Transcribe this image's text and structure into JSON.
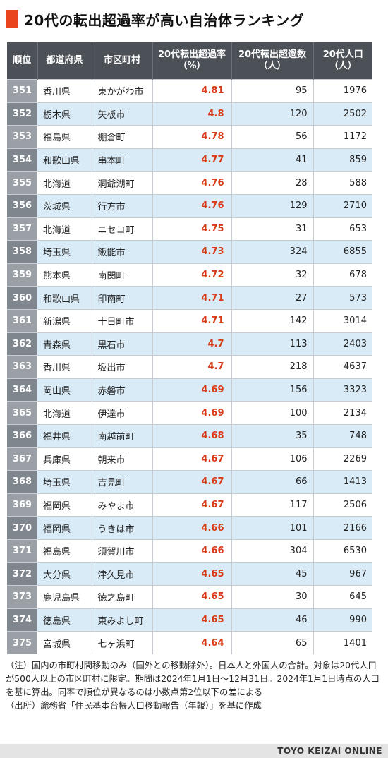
{
  "title": "20代の転出超過率が高い自治体ランキング",
  "colors": {
    "accent": "#e8451e",
    "header_bg": "#4b5157",
    "row_alt": "#d9ebf7",
    "rate_text": "#d83a17"
  },
  "headers": [
    "順位",
    "都道府県",
    "市区町村",
    "20代転出超過率\n（%）",
    "20代転出超過数\n（人）",
    "20代人口\n（人）"
  ],
  "rows": [
    [
      "351",
      "香川県",
      "東かがわ市",
      "4.81",
      "95",
      "1976"
    ],
    [
      "352",
      "栃木県",
      "矢板市",
      "4.8",
      "120",
      "2502"
    ],
    [
      "353",
      "福島県",
      "棚倉町",
      "4.78",
      "56",
      "1172"
    ],
    [
      "354",
      "和歌山県",
      "串本町",
      "4.77",
      "41",
      "859"
    ],
    [
      "355",
      "北海道",
      "洞爺湖町",
      "4.76",
      "28",
      "588"
    ],
    [
      "356",
      "茨城県",
      "行方市",
      "4.76",
      "129",
      "2710"
    ],
    [
      "357",
      "北海道",
      "ニセコ町",
      "4.75",
      "31",
      "653"
    ],
    [
      "358",
      "埼玉県",
      "飯能市",
      "4.73",
      "324",
      "6855"
    ],
    [
      "359",
      "熊本県",
      "南関町",
      "4.72",
      "32",
      "678"
    ],
    [
      "360",
      "和歌山県",
      "印南町",
      "4.71",
      "27",
      "573"
    ],
    [
      "361",
      "新潟県",
      "十日町市",
      "4.71",
      "142",
      "3014"
    ],
    [
      "362",
      "青森県",
      "黒石市",
      "4.7",
      "113",
      "2403"
    ],
    [
      "363",
      "香川県",
      "坂出市",
      "4.7",
      "218",
      "4637"
    ],
    [
      "364",
      "岡山県",
      "赤磐市",
      "4.69",
      "156",
      "3323"
    ],
    [
      "365",
      "北海道",
      "伊達市",
      "4.69",
      "100",
      "2134"
    ],
    [
      "366",
      "福井県",
      "南越前町",
      "4.68",
      "35",
      "748"
    ],
    [
      "367",
      "兵庫県",
      "朝来市",
      "4.67",
      "106",
      "2269"
    ],
    [
      "368",
      "埼玉県",
      "吉見町",
      "4.67",
      "66",
      "1413"
    ],
    [
      "369",
      "福岡県",
      "みやま市",
      "4.67",
      "117",
      "2506"
    ],
    [
      "370",
      "福岡県",
      "うきは市",
      "4.66",
      "101",
      "2166"
    ],
    [
      "371",
      "福島県",
      "須賀川市",
      "4.66",
      "304",
      "6530"
    ],
    [
      "372",
      "大分県",
      "津久見市",
      "4.65",
      "45",
      "967"
    ],
    [
      "373",
      "鹿児島県",
      "徳之島町",
      "4.65",
      "30",
      "645"
    ],
    [
      "374",
      "徳島県",
      "東みよし町",
      "4.65",
      "46",
      "990"
    ],
    [
      "375",
      "宮城県",
      "七ヶ浜町",
      "4.64",
      "65",
      "1401"
    ]
  ],
  "notes": {
    "note": "（注）国内の市町村間移動のみ（国外との移動除外）。日本人と外国人の合計。対象は20代人口が500人以上の市区町村に限定。期間は2024年1月1日～12月31日。2024年1月1日時点の人口を基に算出。同率で順位が異なるのは小数点第2位以下の差による",
    "source": "（出所）総務省「住民基本台帳人口移動報告（年報）」を基に作成"
  },
  "footer": "TOYO KEIZAI ONLINE"
}
